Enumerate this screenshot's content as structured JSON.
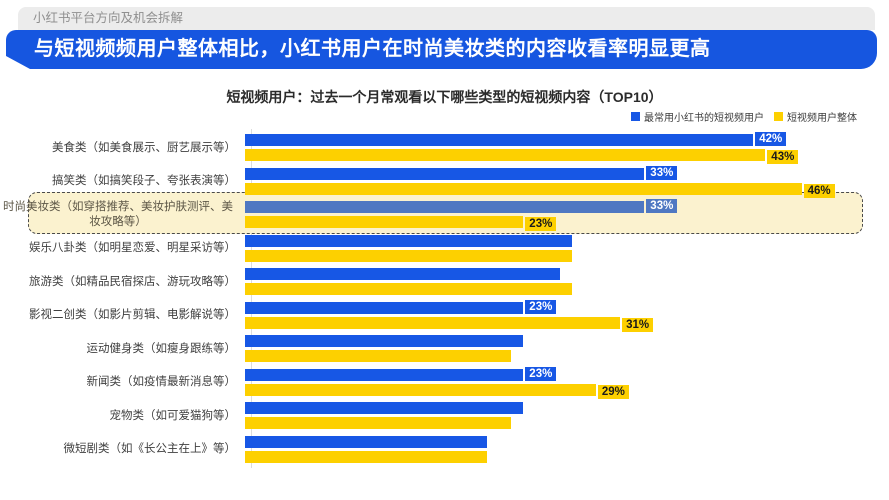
{
  "page": {
    "kicker": "小红书平台方向及机会拆解",
    "banner_title": "与短视频频用户整体相比，小红书用户在时尚美妆类的内容收看率明显更高"
  },
  "colors": {
    "accent_blue": "#1757e5",
    "muted_blue": "#4f78c2",
    "accent_yellow": "#fdd000",
    "banner_bg": "#1656e0",
    "highlight_bg": "#fbf2cf",
    "kicker_bg": "#ececec"
  },
  "chart_data": {
    "type": "bar",
    "orientation": "horizontal",
    "title": "短视频用户：过去一个月常观看以下哪些类型的短视频内容（TOP10）",
    "value_unit": "%",
    "xlim": [
      0,
      52
    ],
    "grid": false,
    "legend_position": "top-right",
    "categories": [
      "美食类（如美食展示、厨艺展示等）",
      "搞笑类（如搞笑段子、夸张表演等）",
      "时尚美妆类（如穿搭推荐、美妆护肤测评、美妆攻略等）",
      "娱乐八卦类（如明星恋爱、明星采访等）",
      "旅游类（如精品民宿探店、游玩攻略等）",
      "影视二创类（如影片剪辑、电影解说等）",
      "运动健身类（如瘦身跟练等）",
      "新闻类（如疫情最新消息等）",
      "宠物类（如可爱猫狗等）",
      "微短剧类（如《长公主在上》等）"
    ],
    "highlighted_category_index": 2,
    "series": [
      {
        "name": "最常用小红书的短视频用户",
        "color": "#1757e5",
        "values": [
          42,
          33,
          33,
          27,
          26,
          23,
          23,
          23,
          23,
          20
        ],
        "labeled_values": [
          "42%",
          "33%",
          "33%",
          null,
          null,
          "23%",
          null,
          "23%",
          null,
          null
        ]
      },
      {
        "name": "短视频用户整体",
        "color": "#fdd000",
        "values": [
          43,
          46,
          23,
          27,
          27,
          31,
          22,
          29,
          22,
          20
        ],
        "labeled_values": [
          "43%",
          "46%",
          "23%",
          null,
          null,
          "31%",
          null,
          "29%",
          null,
          null
        ]
      }
    ]
  }
}
